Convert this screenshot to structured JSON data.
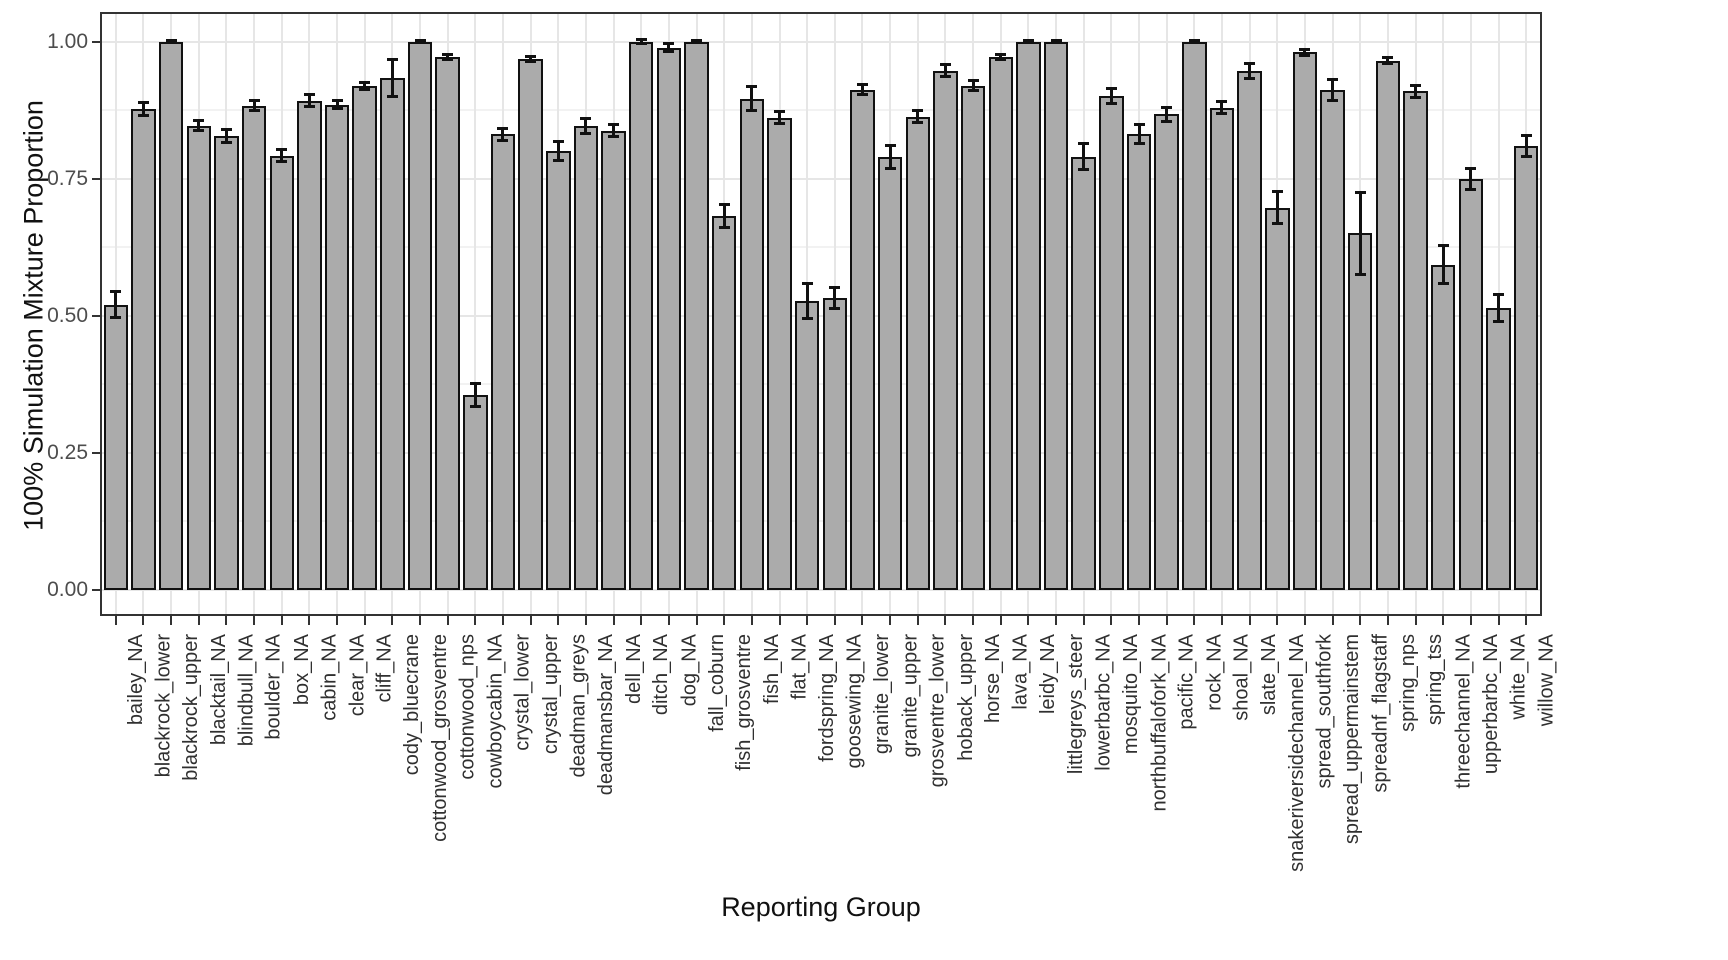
{
  "chart_data": {
    "type": "bar",
    "title": "",
    "xlabel": "Reporting Group",
    "ylabel": "100% Simulation Mixture Proportion",
    "ylim": [
      0,
      1.0
    ],
    "yticks": [
      0.0,
      0.25,
      0.5,
      0.75,
      1.0
    ],
    "ytick_labels": [
      "0.00",
      "0.25",
      "0.50",
      "0.75",
      "1.00"
    ],
    "grid": "on",
    "legend": "none",
    "error_bars": true,
    "categories": [
      "bailey_NA",
      "blackrock_lower",
      "blackrock_upper",
      "blacktail_NA",
      "blindbull_NA",
      "boulder_NA",
      "box_NA",
      "cabin_NA",
      "clear_NA",
      "cliff_NA",
      "cody_bluecrane",
      "cottonwood_grosventre",
      "cottonwood_nps",
      "cowboycabin_NA",
      "crystal_lower",
      "crystal_upper",
      "deadman_greys",
      "deadmansbar_NA",
      "dell_NA",
      "ditch_NA",
      "dog_NA",
      "fall_coburn",
      "fish_grosventre",
      "fish_NA",
      "flat_NA",
      "fordspring_NA",
      "goosewing_NA",
      "granite_lower",
      "granite_upper",
      "grosventre_lower",
      "hoback_upper",
      "horse_NA",
      "lava_NA",
      "leidy_NA",
      "littlegreys_steer",
      "lowerbarbc_NA",
      "mosquito_NA",
      "northbuffalofork_NA",
      "pacific_NA",
      "rock_NA",
      "shoal_NA",
      "slate_NA",
      "snakeriversidechannel_NA",
      "spread_southfork",
      "spread_uppermainstem",
      "spreadnf_flagstaff",
      "spring_nps",
      "spring_tss",
      "threechannel_NA",
      "upperbarbc_NA",
      "white_NA",
      "willow_NA"
    ],
    "values": [
      0.52,
      0.877,
      1.0,
      0.846,
      0.828,
      0.883,
      0.792,
      0.892,
      0.885,
      0.919,
      0.933,
      1.0,
      0.972,
      0.355,
      0.831,
      0.968,
      0.8,
      0.846,
      0.837,
      1.0,
      0.989,
      1.0,
      0.682,
      0.896,
      0.861,
      0.527,
      0.532,
      0.912,
      0.789,
      0.863,
      0.947,
      0.919,
      0.972,
      1.0,
      1.0,
      0.79,
      0.901,
      0.831,
      0.867,
      1.0,
      0.879,
      0.946,
      0.697,
      0.98,
      0.912,
      0.65,
      0.965,
      0.909,
      0.593,
      0.749,
      0.514,
      0.81
    ],
    "errors": [
      0.025,
      0.013,
      0.002,
      0.01,
      0.013,
      0.01,
      0.012,
      0.012,
      0.008,
      0.008,
      0.035,
      0.002,
      0.005,
      0.022,
      0.012,
      0.006,
      0.018,
      0.015,
      0.012,
      0.004,
      0.008,
      0.002,
      0.022,
      0.022,
      0.012,
      0.033,
      0.02,
      0.01,
      0.022,
      0.012,
      0.012,
      0.01,
      0.006,
      0.002,
      0.002,
      0.025,
      0.015,
      0.018,
      0.013,
      0.002,
      0.012,
      0.015,
      0.03,
      0.007,
      0.02,
      0.075,
      0.006,
      0.012,
      0.036,
      0.02,
      0.025,
      0.02
    ],
    "colors": {
      "bar_fill": "#ABABAB",
      "bar_border": "#111111",
      "error_bar": "#111111",
      "grid_major": "#E6E6E6",
      "grid_minor": "#F2F2F2",
      "panel_border": "#333333",
      "axis_text": "#4D4D4D",
      "title_text": "#111111"
    }
  }
}
